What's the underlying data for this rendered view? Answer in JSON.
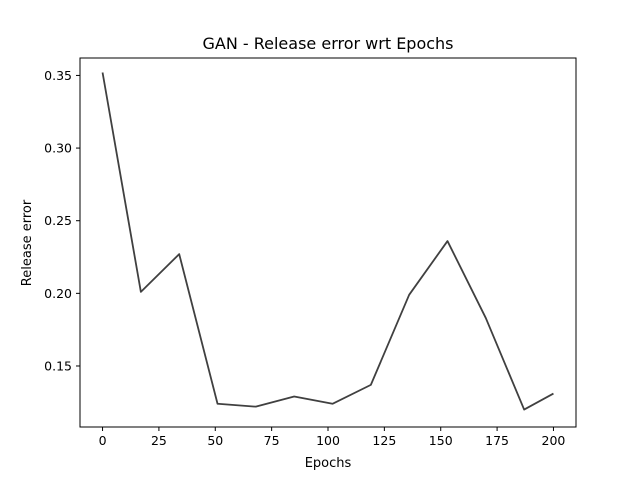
{
  "chart_data": {
    "type": "line",
    "title": "GAN - Release error wrt Epochs",
    "xlabel": "Epochs",
    "ylabel": "Release error",
    "x": [
      0,
      17,
      34,
      51,
      68,
      85,
      102,
      119,
      136,
      153,
      170,
      187,
      200
    ],
    "series": [
      {
        "values": [
          0.352,
          0.201,
          0.227,
          0.124,
          0.122,
          0.129,
          0.124,
          0.137,
          0.199,
          0.236,
          0.183,
          0.12,
          0.131
        ]
      }
    ],
    "xlim": [
      -10,
      210
    ],
    "ylim": [
      0.108,
      0.362
    ],
    "xticks": [
      0,
      25,
      50,
      75,
      100,
      125,
      150,
      175,
      200
    ],
    "xtick_labels": [
      "0",
      "25",
      "50",
      "75",
      "100",
      "125",
      "150",
      "175",
      "200"
    ],
    "yticks": [
      0.15,
      0.2,
      0.25,
      0.3,
      0.35
    ],
    "ytick_labels": [
      "0.15",
      "0.20",
      "0.25",
      "0.30",
      "0.35"
    ],
    "grid": false,
    "line_color": "#404040"
  }
}
